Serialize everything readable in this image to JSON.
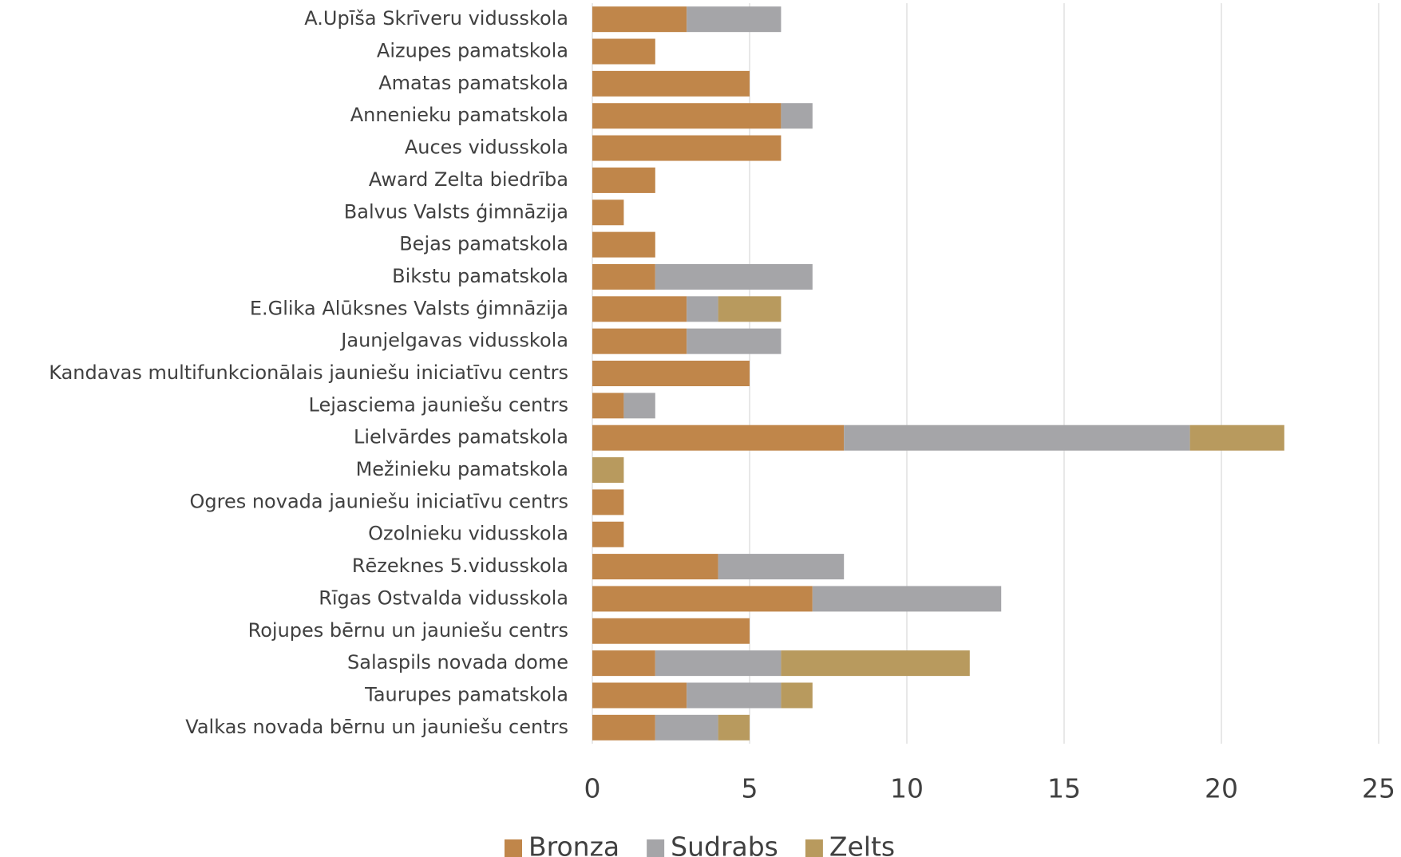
{
  "chart_data": {
    "type": "stacked-barh",
    "categories": [
      "A.Upīša Skrīveru vidusskola",
      "Aizupes pamatskola",
      "Amatas pamatskola",
      "Annenieku pamatskola",
      "Auces vidusskola",
      "Award Zelta biedrība",
      "Balvus Valsts ģimnāzija",
      "Bejas pamatskola",
      "Bikstu pamatskola",
      "E.Glika Alūksnes Valsts ģimnāzija",
      "Jaunjelgavas vidusskola",
      "Kandavas multifunkcionālais jauniešu iniciatīvu centrs",
      "Lejasciema jauniešu centrs",
      "Lielvārdes pamatskola",
      "Mežinieku pamatskola",
      "Ogres novada jauniešu iniciatīvu centrs",
      "Ozolnieku vidusskola",
      "Rēzeknes 5.vidusskola",
      "Rīgas Ostvalda vidusskola",
      "Rojupes bērnu un jauniešu centrs",
      "Salaspils novada dome",
      "Taurupes pamatskola",
      "Valkas novada bērnu un jauniešu centrs"
    ],
    "series": [
      {
        "name": "Bronza",
        "color": "#c0864a",
        "values": [
          3,
          2,
          5,
          6,
          6,
          2,
          1,
          2,
          2,
          3,
          3,
          5,
          1,
          8,
          0,
          1,
          1,
          4,
          7,
          5,
          2,
          3,
          2
        ]
      },
      {
        "name": "Sudrabs",
        "color": "#a5a5a8",
        "values": [
          3,
          0,
          0,
          1,
          0,
          0,
          0,
          0,
          5,
          1,
          3,
          0,
          1,
          11,
          0,
          0,
          0,
          4,
          6,
          0,
          4,
          3,
          2
        ]
      },
      {
        "name": "Zelts",
        "color": "#b89a5e",
        "values": [
          0,
          0,
          0,
          0,
          0,
          0,
          0,
          0,
          0,
          2,
          0,
          0,
          0,
          3,
          1,
          0,
          0,
          0,
          0,
          0,
          6,
          1,
          1
        ]
      }
    ],
    "xlim": [
      0,
      25
    ],
    "xticks": [
      0,
      5,
      10,
      15,
      20,
      25
    ],
    "grid": true,
    "legend": "bottom"
  }
}
